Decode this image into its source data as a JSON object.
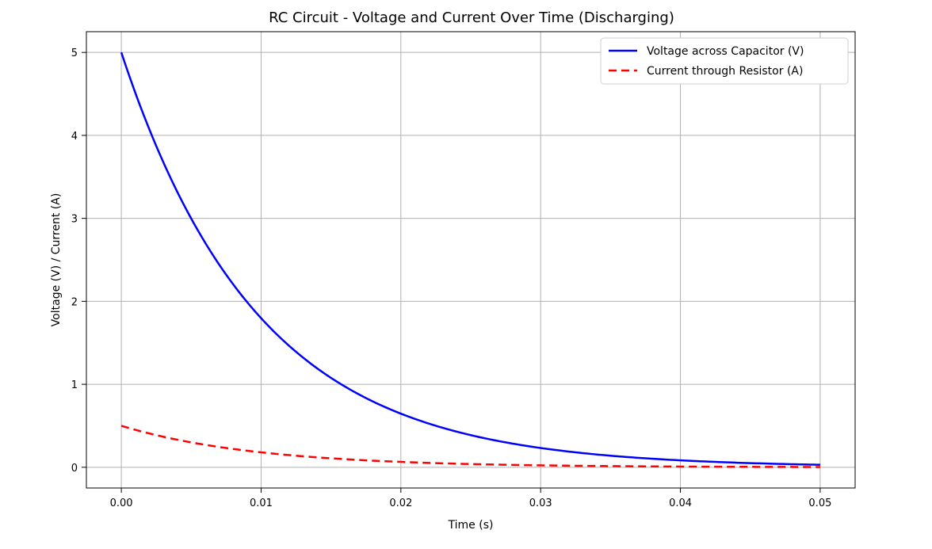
{
  "chart_data": {
    "type": "line",
    "title": "RC Circuit - Voltage and Current Over Time (Discharging)",
    "xlabel": "Time (s)",
    "ylabel": "Voltage (V) / Current (A)",
    "xlim": [
      -0.0025,
      0.0525
    ],
    "ylim": [
      -0.25,
      5.25
    ],
    "xticks": [
      0.0,
      0.01,
      0.02,
      0.03,
      0.04,
      0.05
    ],
    "xtick_labels": [
      "0.00",
      "0.01",
      "0.02",
      "0.03",
      "0.04",
      "0.05"
    ],
    "yticks": [
      0,
      1,
      2,
      3,
      4,
      5
    ],
    "ytick_labels": [
      "0",
      "1",
      "2",
      "3",
      "4",
      "5"
    ],
    "grid": true,
    "legend": "top-right",
    "x": [
      0.0,
      0.005,
      0.01,
      0.015,
      0.02,
      0.025,
      0.03,
      0.035,
      0.04,
      0.045,
      0.05
    ],
    "series": [
      {
        "name": "Voltage across Capacitor (V)",
        "style": "solid",
        "color": "#0000ff",
        "values": [
          5.0,
          3.03,
          1.84,
          1.12,
          0.68,
          0.41,
          0.25,
          0.15,
          0.09,
          0.06,
          0.03
        ]
      },
      {
        "name": "Current through Resistor (A)",
        "style": "dashed",
        "color": "#ff0000",
        "values": [
          0.5,
          0.303,
          0.184,
          0.112,
          0.068,
          0.041,
          0.025,
          0.015,
          0.009,
          0.006,
          0.003
        ]
      }
    ]
  }
}
